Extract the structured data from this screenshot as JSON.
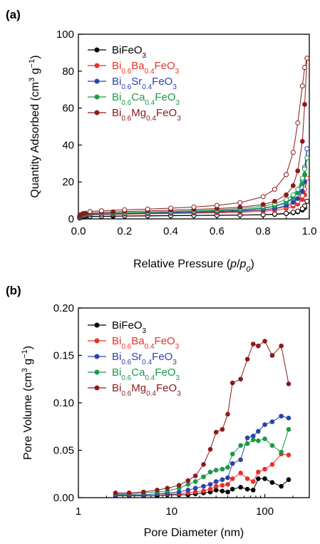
{
  "chart_data": [
    {
      "type": "scatter",
      "panel_label": "(a)",
      "xlabel": {
        "prefix": "Relative Pressure (",
        "var": "p",
        "sep": "/",
        "var2": "p",
        "sub": "0",
        "suffix": ")"
      },
      "ylabel": {
        "prefix": "Quantity Adsorbed (cm",
        "sup": "3",
        "mid": " g",
        "sup2": "−1",
        "suffix": ")"
      },
      "xlim": [
        0,
        1
      ],
      "ylim": [
        0,
        100
      ],
      "xticks": [
        0,
        0.2,
        0.4,
        0.6,
        0.8,
        1.0
      ],
      "xtick_labels": [
        "0.0",
        "0.2",
        "0.4",
        "0.6",
        "0.8",
        "1.0"
      ],
      "yticks": [
        0,
        20,
        40,
        60,
        80,
        100
      ],
      "ytick_labels": [
        "0",
        "20",
        "40",
        "60",
        "80",
        "100"
      ],
      "legend_position": "top-left",
      "series": [
        {
          "name": "BiFeO3",
          "color": "#000000",
          "adsorption": {
            "x": [
              0.005,
              0.01,
              0.02,
              0.03,
              0.05,
              0.1,
              0.15,
              0.2,
              0.3,
              0.4,
              0.5,
              0.6,
              0.7,
              0.8,
              0.85,
              0.9,
              0.93,
              0.95,
              0.97,
              0.98,
              0.99
            ],
            "y": [
              0.5,
              0.8,
              1.0,
              1.1,
              1.2,
              1.3,
              1.4,
              1.5,
              1.6,
              1.7,
              1.8,
              1.9,
              2.0,
              2.2,
              2.4,
              2.8,
              3.3,
              3.8,
              4.8,
              6.0,
              9.5
            ]
          },
          "desorption": {
            "x": [
              0.99,
              0.98,
              0.97,
              0.95,
              0.93,
              0.9,
              0.85,
              0.8,
              0.7,
              0.6,
              0.5,
              0.4,
              0.3,
              0.2,
              0.1,
              0.05
            ],
            "y": [
              9.5,
              7.0,
              5.5,
              4.2,
              3.6,
              3.0,
              2.6,
              2.3,
              2.1,
              2.0,
              1.9,
              1.8,
              1.7,
              1.6,
              1.4,
              1.3
            ]
          }
        },
        {
          "name": "Bi0.6Ba0.4FeO3",
          "color": "#e8312a",
          "adsorption": {
            "x": [
              0.005,
              0.01,
              0.02,
              0.03,
              0.05,
              0.1,
              0.15,
              0.2,
              0.3,
              0.4,
              0.5,
              0.6,
              0.7,
              0.8,
              0.85,
              0.9,
              0.93,
              0.95,
              0.97,
              0.98,
              0.99
            ],
            "y": [
              0.9,
              1.4,
              1.8,
              2.0,
              2.1,
              2.3,
              2.4,
              2.5,
              2.7,
              2.9,
              3.1,
              3.3,
              3.6,
              4.1,
              4.6,
              5.6,
              6.8,
              8.0,
              10.5,
              13.0,
              22.0
            ]
          },
          "desorption": {
            "x": [
              0.99,
              0.98,
              0.97,
              0.95,
              0.93,
              0.9,
              0.85,
              0.8,
              0.7,
              0.6,
              0.5,
              0.4,
              0.3,
              0.2,
              0.1,
              0.05
            ],
            "y": [
              22.0,
              16.0,
              12.5,
              9.5,
              7.8,
              6.6,
              5.4,
              4.7,
              4.0,
              3.6,
              3.3,
              3.1,
              2.9,
              2.7,
              2.4,
              2.2
            ]
          }
        },
        {
          "name": "Bi0.6Sr0.4FeO3",
          "color": "#2a44a8",
          "adsorption": {
            "x": [
              0.005,
              0.01,
              0.02,
              0.03,
              0.05,
              0.1,
              0.15,
              0.2,
              0.3,
              0.4,
              0.5,
              0.6,
              0.7,
              0.8,
              0.85,
              0.9,
              0.93,
              0.95,
              0.97,
              0.98,
              0.99
            ],
            "y": [
              1.0,
              1.5,
              2.0,
              2.2,
              2.3,
              2.5,
              2.6,
              2.8,
              3.0,
              3.2,
              3.5,
              3.8,
              4.2,
              4.9,
              5.7,
              7.2,
              9.0,
              11.0,
              15.0,
              20.0,
              38.0
            ]
          },
          "desorption": {
            "x": [
              0.99,
              0.98,
              0.97,
              0.95,
              0.93,
              0.9,
              0.85,
              0.8,
              0.7,
              0.6,
              0.5,
              0.4,
              0.3,
              0.2,
              0.1,
              0.05
            ],
            "y": [
              38.0,
              28.0,
              21.0,
              14.5,
              11.0,
              8.6,
              6.8,
              5.7,
              4.6,
              4.1,
              3.7,
              3.4,
              3.1,
              2.9,
              2.6,
              2.4
            ]
          }
        },
        {
          "name": "Bi0.6Ca0.4FeO3",
          "color": "#1a9a48",
          "adsorption": {
            "x": [
              0.005,
              0.01,
              0.02,
              0.03,
              0.05,
              0.1,
              0.15,
              0.2,
              0.3,
              0.4,
              0.5,
              0.6,
              0.7,
              0.8,
              0.85,
              0.9,
              0.93,
              0.95,
              0.97,
              0.98,
              0.99
            ],
            "y": [
              1.2,
              1.8,
              2.3,
              2.5,
              2.7,
              2.9,
              3.0,
              3.2,
              3.5,
              3.8,
              4.1,
              4.5,
              5.0,
              6.0,
              7.0,
              9.0,
              11.5,
              14.0,
              19.0,
              24.0,
              33.0
            ]
          },
          "desorption": {
            "x": [
              0.99,
              0.98,
              0.97,
              0.95,
              0.93,
              0.9,
              0.85,
              0.8,
              0.7,
              0.6,
              0.5,
              0.4,
              0.3,
              0.2,
              0.1,
              0.05
            ],
            "y": [
              33.0,
              27.0,
              22.0,
              16.0,
              13.0,
              10.5,
              8.2,
              6.9,
              5.6,
              4.9,
              4.4,
              4.0,
              3.7,
              3.4,
              3.0,
              2.8
            ]
          }
        },
        {
          "name": "Bi0.6Mg0.4FeO3",
          "color": "#8b1a1a",
          "adsorption": {
            "x": [
              0.005,
              0.01,
              0.02,
              0.03,
              0.05,
              0.1,
              0.15,
              0.2,
              0.3,
              0.4,
              0.5,
              0.6,
              0.7,
              0.8,
              0.85,
              0.9,
              0.93,
              0.95,
              0.97,
              0.98,
              0.99
            ],
            "y": [
              1.5,
              2.3,
              2.9,
              3.1,
              3.3,
              3.6,
              3.8,
              4.0,
              4.3,
              4.7,
              5.1,
              5.6,
              6.3,
              7.8,
              9.5,
              13.0,
              18.0,
              26.0,
              42.0,
              62.0,
              87.0
            ]
          },
          "desorption": {
            "x": [
              0.99,
              0.98,
              0.97,
              0.95,
              0.93,
              0.9,
              0.85,
              0.8,
              0.7,
              0.6,
              0.5,
              0.4,
              0.3,
              0.2,
              0.1,
              0.05
            ],
            "y": [
              87.0,
              82.0,
              72.0,
              52.0,
              36.0,
              24.0,
              16.0,
              12.0,
              8.8,
              7.3,
              6.4,
              5.8,
              5.3,
              4.9,
              4.4,
              4.0
            ]
          }
        }
      ]
    },
    {
      "type": "line",
      "panel_label": "(b)",
      "xscale": "log",
      "xlabel": {
        "text": "Pore Diameter (nm)"
      },
      "ylabel": {
        "prefix": "Pore Volume (cm",
        "sup": "3",
        "mid": " g",
        "sup2": "−1",
        "suffix": ")"
      },
      "xlim": [
        1,
        300
      ],
      "ylim": [
        0,
        0.2
      ],
      "xticks": [
        1,
        10,
        100
      ],
      "xtick_labels": [
        "1",
        "10",
        "100"
      ],
      "yticks": [
        0,
        0.05,
        0.1,
        0.15,
        0.2
      ],
      "ytick_labels": [
        "0.00",
        "0.05",
        "0.10",
        "0.15",
        "0.20"
      ],
      "legend_position": "top-left",
      "series": [
        {
          "name": "BiFeO3",
          "color": "#000000",
          "x": [
            2.5,
            3.5,
            5,
            7,
            9,
            12,
            15,
            18,
            22,
            26,
            30,
            35,
            40,
            45,
            55,
            65,
            75,
            85,
            100,
            120,
            150,
            180
          ],
          "y": [
            0.002,
            0.002,
            0.002,
            0.002,
            0.003,
            0.003,
            0.003,
            0.004,
            0.005,
            0.006,
            0.008,
            0.007,
            0.006,
            0.009,
            0.011,
            0.009,
            0.008,
            0.02,
            0.02,
            0.016,
            0.012,
            0.019
          ]
        },
        {
          "name": "Bi0.6Ba0.4FeO3",
          "color": "#e8312a",
          "x": [
            2.5,
            3.5,
            5,
            7,
            9,
            12,
            15,
            18,
            22,
            26,
            30,
            35,
            40,
            45,
            55,
            65,
            75,
            85,
            100,
            120,
            150,
            180
          ],
          "y": [
            0.003,
            0.003,
            0.003,
            0.004,
            0.004,
            0.004,
            0.005,
            0.006,
            0.007,
            0.009,
            0.012,
            0.013,
            0.014,
            0.02,
            0.026,
            0.02,
            0.017,
            0.027,
            0.03,
            0.035,
            0.046,
            0.045
          ]
        },
        {
          "name": "Bi0.6Sr0.4FeO3",
          "color": "#2a44a8",
          "x": [
            2.5,
            3.5,
            5,
            7,
            9,
            12,
            15,
            18,
            22,
            26,
            30,
            35,
            40,
            45,
            55,
            65,
            75,
            85,
            100,
            120,
            150,
            180
          ],
          "y": [
            0.003,
            0.003,
            0.003,
            0.004,
            0.005,
            0.006,
            0.008,
            0.01,
            0.012,
            0.014,
            0.017,
            0.019,
            0.021,
            0.036,
            0.04,
            0.063,
            0.065,
            0.07,
            0.077,
            0.08,
            0.086,
            0.084
          ]
        },
        {
          "name": "Bi0.6Ca0.4FeO3",
          "color": "#1a9a48",
          "x": [
            2.5,
            3.5,
            5,
            7,
            9,
            12,
            15,
            18,
            22,
            26,
            30,
            35,
            40,
            45,
            55,
            65,
            75,
            85,
            100,
            120,
            150,
            180
          ],
          "y": [
            0.004,
            0.004,
            0.005,
            0.006,
            0.007,
            0.01,
            0.014,
            0.017,
            0.022,
            0.027,
            0.029,
            0.03,
            0.032,
            0.046,
            0.055,
            0.057,
            0.061,
            0.06,
            0.062,
            0.055,
            0.048,
            0.072
          ]
        },
        {
          "name": "Bi0.6Mg0.4FeO3",
          "color": "#8b1a1a",
          "x": [
            2.5,
            3.5,
            5,
            7,
            9,
            12,
            15,
            18,
            22,
            26,
            30,
            35,
            40,
            45,
            55,
            65,
            75,
            85,
            100,
            120,
            150,
            180
          ],
          "y": [
            0.005,
            0.005,
            0.006,
            0.008,
            0.01,
            0.013,
            0.018,
            0.023,
            0.035,
            0.051,
            0.069,
            0.072,
            0.088,
            0.121,
            0.125,
            0.146,
            0.162,
            0.16,
            0.165,
            0.15,
            0.16,
            0.12
          ]
        }
      ]
    }
  ]
}
